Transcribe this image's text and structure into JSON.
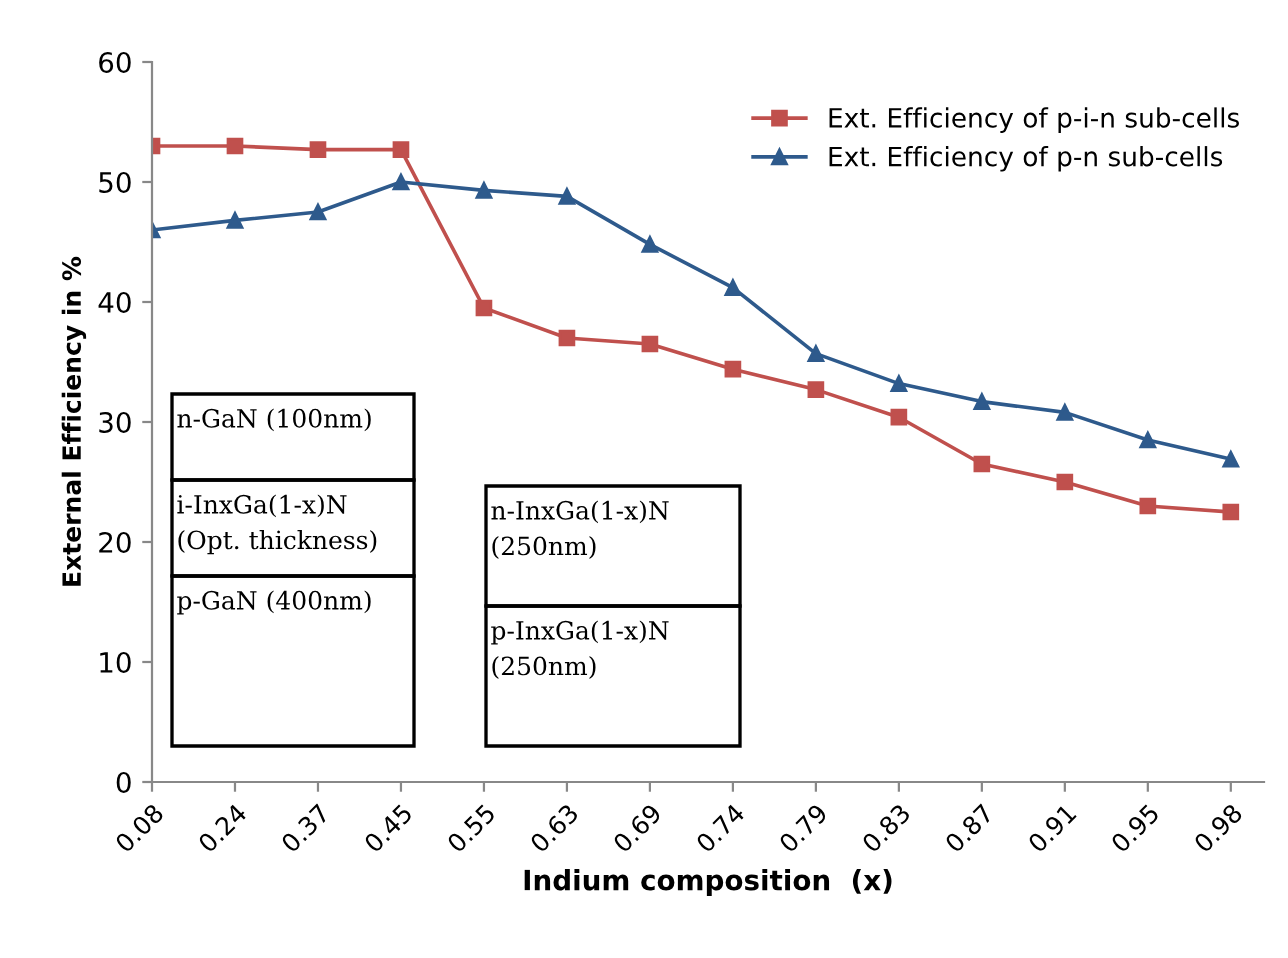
{
  "chart_data": {
    "type": "line",
    "xlabel": "Indium composition  (x)",
    "ylabel": "External Efficiency in %",
    "categories": [
      "0.08",
      "0.24",
      "0.37",
      "0.45",
      "0.55",
      "0.63",
      "0.69",
      "0.74",
      "0.79",
      "0.83",
      "0.87",
      "0.91",
      "0.95",
      "0.98"
    ],
    "series": [
      {
        "name": "Ext. Efficiency of p-i-n sub-cells",
        "color": "#c0504d",
        "marker": "square",
        "values": [
          53,
          53,
          52.7,
          52.7,
          39.5,
          37,
          36.5,
          34.4,
          32.7,
          30.4,
          26.5,
          25,
          23,
          22.5
        ]
      },
      {
        "name": "Ext. Efficiency of p-n sub-cells",
        "color": "#2e5a8c",
        "marker": "triangle",
        "values": [
          46,
          46.8,
          47.5,
          50,
          49.3,
          48.8,
          44.8,
          41.2,
          35.7,
          33.2,
          31.7,
          30.8,
          28.5,
          26.9
        ]
      }
    ],
    "ylim": [
      0,
      60
    ],
    "yticks": [
      0,
      10,
      20,
      30,
      40,
      50,
      60
    ],
    "grid": false,
    "legend": "top right",
    "line_style": "solid",
    "annotations": [
      "n-GaN (100nm)",
      "i-InxGa(1-x)N\n(Opt. thickness)",
      "p-GaN (400nm)",
      "n-InxGa(1-x)N\n(250nm)",
      "p-InxGa(1-x)N\n(250nm)"
    ]
  }
}
